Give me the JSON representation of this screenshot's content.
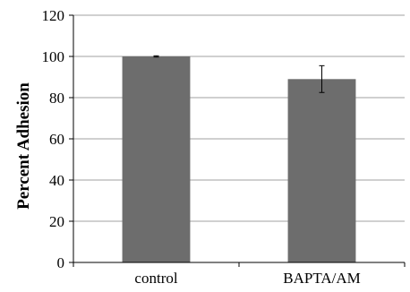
{
  "chart_data": {
    "type": "bar",
    "categories": [
      "control",
      "BAPTA/AM"
    ],
    "values": [
      100,
      89
    ],
    "error": [
      0.3,
      6.5
    ],
    "ylabel": "Percent Adhesion",
    "ylim": [
      0,
      120
    ],
    "yticks": [
      0,
      20,
      40,
      60,
      80,
      100,
      120
    ],
    "grid": true,
    "bar_color": "#6d6d6d",
    "grid_color": "#a0a0a0"
  }
}
